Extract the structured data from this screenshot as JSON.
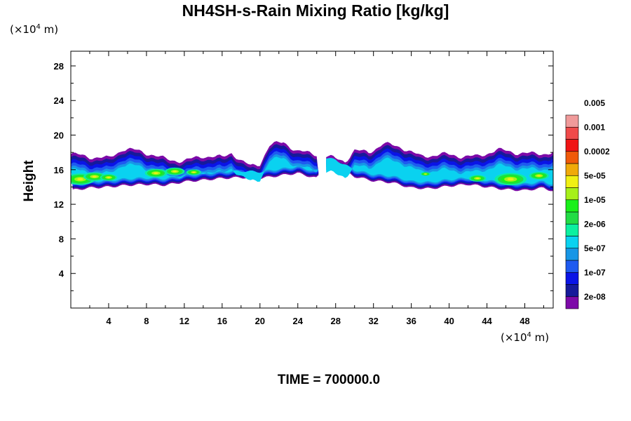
{
  "chart_data": {
    "type": "heatmap",
    "title": "NH4SH-s-Rain Mixing Ratio [kg/kg]",
    "ylabel": "Height",
    "xlabel": "",
    "x_scale_label": "(×10",
    "y_scale_label": "(×10",
    "scale_exp": "4",
    "scale_unit": " m)",
    "xlim": [
      0,
      51
    ],
    "ylim": [
      0,
      29.7
    ],
    "x_ticks": [
      4,
      8,
      12,
      16,
      20,
      24,
      28,
      32,
      36,
      40,
      44,
      48
    ],
    "y_ticks": [
      4,
      8,
      12,
      16,
      20,
      24,
      28
    ],
    "colorbar": {
      "colors": [
        "#7d0aa8",
        "#161a9a",
        "#0a14e6",
        "#1e5af0",
        "#1796e6",
        "#0ad2f0",
        "#0cf0a0",
        "#22dc45",
        "#19f019",
        "#a6f019",
        "#f0f014",
        "#f0aa0a",
        "#f05a0a",
        "#f01414",
        "#f04a4a",
        "#f09a9a"
      ],
      "labels": [
        "2e-08",
        "1e-07",
        "5e-07",
        "2e-06",
        "1e-05",
        "5e-05",
        "0.0002",
        "0.001",
        "0.005"
      ]
    },
    "field": {
      "x_range": [
        0,
        51
      ],
      "upper_boundary": [
        [
          0,
          17.8
        ],
        [
          2,
          17.5
        ],
        [
          4,
          17.3
        ],
        [
          5.5,
          18.4
        ],
        [
          7,
          18.2
        ],
        [
          8.5,
          17.8
        ],
        [
          10,
          17.2
        ],
        [
          12,
          17.0
        ],
        [
          14,
          17.6
        ],
        [
          16,
          17.4
        ],
        [
          17,
          18.0
        ],
        [
          18,
          17.0
        ],
        [
          19,
          16.4
        ],
        [
          20,
          16.7
        ],
        [
          21,
          18.8
        ],
        [
          22.5,
          19.2
        ],
        [
          24,
          18.1
        ],
        [
          26,
          17.8
        ],
        [
          27.5,
          17.4
        ],
        [
          29,
          17.0
        ],
        [
          30,
          18.2
        ],
        [
          31.5,
          18.0
        ],
        [
          33,
          19.0
        ],
        [
          35,
          18.6
        ],
        [
          37,
          17.5
        ],
        [
          39,
          17.8
        ],
        [
          41,
          17.6
        ],
        [
          43,
          17.5
        ],
        [
          45,
          18.3
        ],
        [
          47,
          18.0
        ],
        [
          49,
          17.8
        ],
        [
          51,
          18.0
        ]
      ],
      "lower_boundary": [
        [
          0,
          13.6
        ],
        [
          2,
          13.9
        ],
        [
          4,
          14.0
        ],
        [
          6,
          14.2
        ],
        [
          8,
          14.3
        ],
        [
          10,
          14.2
        ],
        [
          12,
          14.6
        ],
        [
          14,
          14.8
        ],
        [
          16,
          15.0
        ],
        [
          18,
          15.1
        ],
        [
          20,
          15.0
        ],
        [
          22,
          15.3
        ],
        [
          24,
          15.6
        ],
        [
          26,
          15.0
        ],
        [
          27,
          16.6
        ],
        [
          28,
          16.4
        ],
        [
          30,
          15.2
        ],
        [
          32,
          14.7
        ],
        [
          34,
          14.5
        ],
        [
          36,
          13.9
        ],
        [
          38,
          13.8
        ],
        [
          40,
          14.1
        ],
        [
          42,
          14.3
        ],
        [
          44,
          14.0
        ],
        [
          46,
          13.7
        ],
        [
          48,
          13.6
        ],
        [
          50,
          13.9
        ],
        [
          51,
          13.5
        ]
      ],
      "hotspots": [
        [
          1,
          14.9,
          1.2
        ],
        [
          2.5,
          15.2,
          0.9
        ],
        [
          4,
          15.1,
          0.7
        ],
        [
          9,
          15.6,
          0.9
        ],
        [
          11,
          15.8,
          0.8
        ],
        [
          13,
          15.7,
          0.6
        ],
        [
          46.5,
          14.9,
          1.3
        ],
        [
          49.5,
          15.3,
          0.8
        ],
        [
          43,
          15.0,
          0.7
        ],
        [
          37.5,
          15.5,
          0.4
        ]
      ]
    }
  },
  "time_label": "TIME = 700000.0"
}
